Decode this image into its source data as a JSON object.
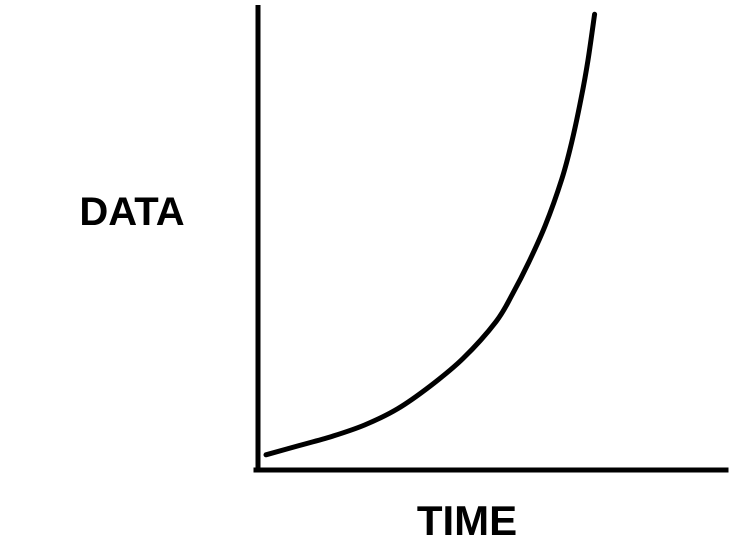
{
  "chart_data": {
    "type": "line",
    "title": "",
    "xlabel": "TIME",
    "ylabel": "DATA",
    "grid": false,
    "legend": false,
    "ticks": false,
    "series": [
      {
        "x": [
          0,
          0.1,
          0.2,
          0.3,
          0.4,
          0.5,
          0.6,
          0.7,
          0.75,
          0.8,
          0.85,
          0.9,
          0.93,
          0.96,
          0.98,
          1.0
        ],
        "y": [
          0.02,
          0.04,
          0.06,
          0.085,
          0.12,
          0.17,
          0.23,
          0.31,
          0.37,
          0.44,
          0.52,
          0.62,
          0.7,
          0.8,
          0.88,
          0.98
        ]
      }
    ],
    "xlim": [
      0,
      1.4
    ],
    "ylim": [
      0,
      1
    ],
    "colors": {
      "line": "#000000",
      "axis": "#000000",
      "background": "#ffffff"
    }
  }
}
